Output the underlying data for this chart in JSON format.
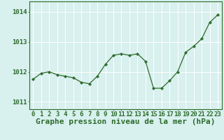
{
  "x": [
    0,
    1,
    2,
    3,
    4,
    5,
    6,
    7,
    8,
    9,
    10,
    11,
    12,
    13,
    14,
    15,
    16,
    17,
    18,
    19,
    20,
    21,
    22,
    23
  ],
  "y": [
    1011.75,
    1011.95,
    1012.0,
    1011.9,
    1011.85,
    1011.8,
    1011.65,
    1011.6,
    1011.85,
    1012.25,
    1012.55,
    1012.6,
    1012.55,
    1012.6,
    1012.35,
    1011.45,
    1011.45,
    1011.7,
    1012.0,
    1012.65,
    1012.85,
    1013.1,
    1013.65,
    1013.9
  ],
  "xlim": [
    -0.5,
    23.5
  ],
  "ylim": [
    1010.75,
    1014.35
  ],
  "yticks": [
    1011,
    1012,
    1013,
    1014
  ],
  "xticks": [
    0,
    1,
    2,
    3,
    4,
    5,
    6,
    7,
    8,
    9,
    10,
    11,
    12,
    13,
    14,
    15,
    16,
    17,
    18,
    19,
    20,
    21,
    22,
    23
  ],
  "xlabel": "Graphe pression niveau de la mer (hPa)",
  "line_color": "#2d6b2d",
  "marker": "D",
  "marker_size": 2.2,
  "bg_color": "#d8f0ee",
  "grid_color": "#ffffff",
  "tick_color": "#2d6b2d",
  "label_color": "#2d6b2d",
  "xlabel_fontsize": 8,
  "tick_fontsize": 6.5,
  "line_width": 0.9
}
